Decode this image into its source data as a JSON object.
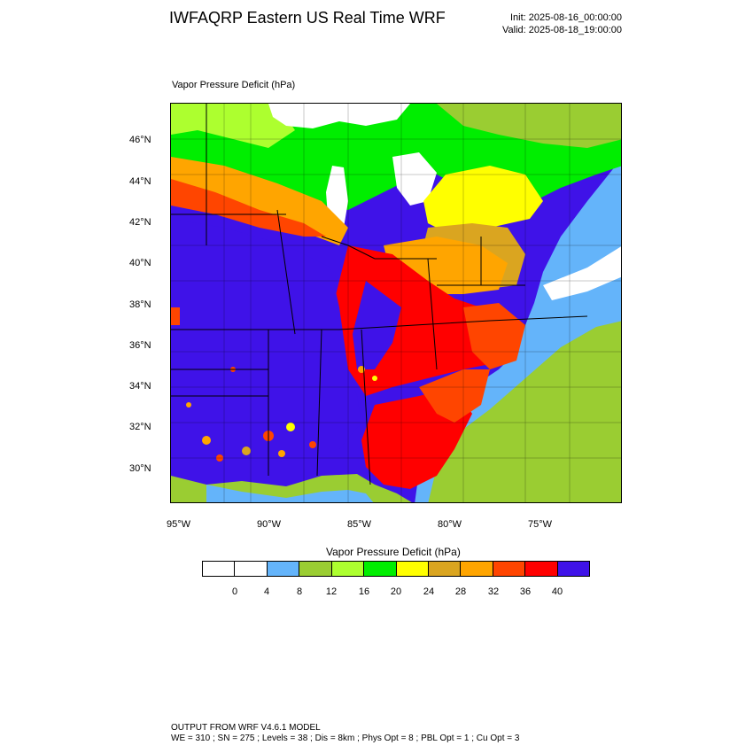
{
  "header": {
    "title": "IWFAQRP Eastern US Real Time WRF",
    "init": "Init: 2025-08-16_00:00:00",
    "valid": "Valid: 2025-08-18_19:00:00"
  },
  "plot": {
    "label": "Vapor Pressure Deficit   (hPa)",
    "lat_labels": [
      "46°N",
      "44°N",
      "42°N",
      "40°N",
      "38°N",
      "36°N",
      "34°N",
      "32°N",
      "30°N"
    ],
    "lon_labels": [
      "95°W",
      "90°W",
      "85°W",
      "80°W",
      "75°W"
    ]
  },
  "colorbar": {
    "title": "Vapor Pressure Deficit   (hPa)",
    "colors": [
      "#ffffff",
      "#ffffff",
      "#64b4fa",
      "#9acd32",
      "#adff2f",
      "#00ee00",
      "#ffff00",
      "#daa520",
      "#ffa500",
      "#ff4500",
      "#ff0000",
      "#3f12e8"
    ],
    "ticks": [
      "0",
      "4",
      "8",
      "12",
      "16",
      "20",
      "24",
      "28",
      "32",
      "36",
      "40"
    ]
  },
  "footer": {
    "line1": "OUTPUT FROM WRF V4.6.1 MODEL",
    "line2": "WE = 310 ; SN = 275 ; Levels = 38 ; Dis = 8km ; Phys Opt = 8 ; PBL Opt = 1 ; Cu Opt = 3"
  }
}
